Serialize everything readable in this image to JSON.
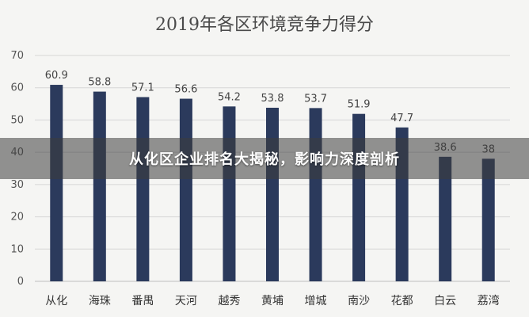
{
  "overlay": {
    "headline": "从化区企业排名大揭秘，影响力深度剖析"
  },
  "colors": {
    "bar": "#2b3a5c",
    "background": "#f5f5f3"
  },
  "chart_data": {
    "type": "bar",
    "title": "2019年各区环境竞争力得分",
    "categories": [
      "从化",
      "海珠",
      "番禺",
      "天河",
      "越秀",
      "黄埔",
      "增城",
      "南沙",
      "花都",
      "白云",
      "荔湾"
    ],
    "values": [
      60.9,
      58.8,
      57.1,
      56.6,
      54.2,
      53.8,
      53.7,
      51.9,
      47.7,
      38.6,
      38
    ],
    "value_labels": [
      "60.9",
      "58.8",
      "57.1",
      "56.6",
      "54.2",
      "53.8",
      "53.7",
      "51.9",
      "47.7",
      "38.6",
      "38"
    ],
    "ylim": [
      0,
      70
    ],
    "yticks": [
      0,
      10,
      20,
      30,
      40,
      50,
      60,
      70
    ],
    "grid": true,
    "legend": "none",
    "xlabel": "",
    "ylabel": ""
  }
}
